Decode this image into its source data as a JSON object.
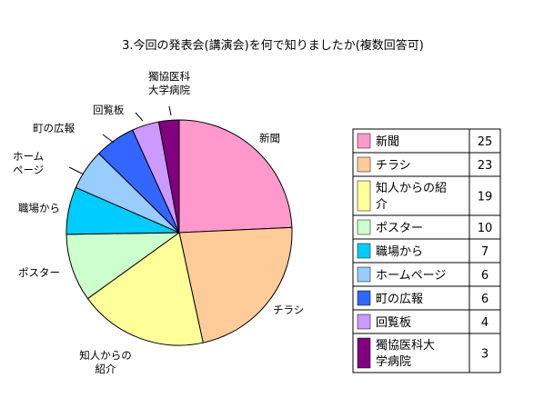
{
  "chart_data": {
    "type": "pie",
    "title": "3.今回の発表会(講演会)を何で知りましたか(複数回答可)",
    "categories": [
      "新聞",
      "チラシ",
      "知人からの紹介",
      "ポスター",
      "職場から",
      "ホームページ",
      "町の広報",
      "回覧板",
      "獨協医科大学病院"
    ],
    "values": [
      25,
      23,
      19,
      10,
      7,
      6,
      6,
      4,
      3
    ],
    "slice_labels": [
      [
        "新聞"
      ],
      [
        "チラシ"
      ],
      [
        "知人からの",
        "紹介"
      ],
      [
        "ポスター"
      ],
      [
        "職場から"
      ],
      [
        "ホーム",
        "ページ"
      ],
      [
        "町の広報"
      ],
      [
        "回覧板"
      ],
      [
        "獨協医科",
        "大学病院"
      ]
    ],
    "legend_labels": [
      [
        "新聞"
      ],
      [
        "チラシ"
      ],
      [
        "知人からの紹",
        "介"
      ],
      [
        "ポスター"
      ],
      [
        "職場から"
      ],
      [
        "ホームページ"
      ],
      [
        "町の広報"
      ],
      [
        "回覧板"
      ],
      [
        "獨協医科大",
        "学病院"
      ]
    ],
    "colors": [
      "#FF99CC",
      "#FFCC99",
      "#FFFF99",
      "#CCFFCC",
      "#00CCFF",
      "#99CCFF",
      "#3366FF",
      "#CC99FF",
      "#800080"
    ],
    "legend_placement": "right"
  }
}
